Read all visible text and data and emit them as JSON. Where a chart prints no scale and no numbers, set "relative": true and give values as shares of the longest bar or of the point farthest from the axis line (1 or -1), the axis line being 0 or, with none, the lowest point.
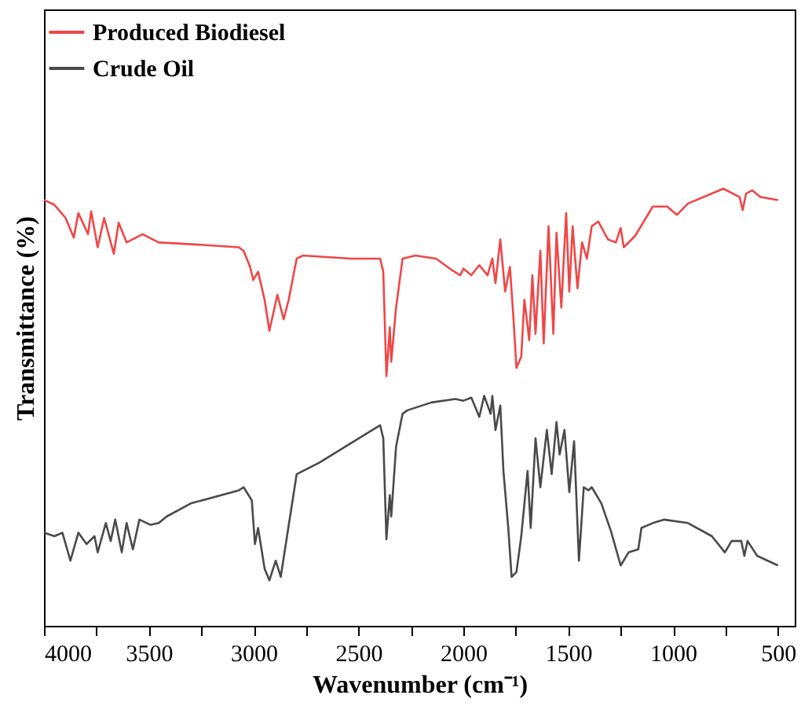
{
  "chart_data": {
    "type": "line",
    "relative": true,
    "xlabel": "Wavenumber (cm⁻¹)",
    "ylabel": "Transmittance (%)",
    "xlim": [
      4000,
      420
    ],
    "xticks": [
      4000,
      {
        "value": 3750,
        "label": null
      },
      3500,
      {
        "value": 3250,
        "label": null
      },
      3000,
      {
        "value": 2750,
        "label": null
      },
      2500,
      {
        "value": 2250,
        "label": null
      },
      2000,
      {
        "value": 1750,
        "label": null
      },
      1500,
      {
        "value": 1250,
        "label": null
      },
      1000,
      {
        "value": 750,
        "label": null
      },
      500
    ],
    "grid": false,
    "legend": "top left",
    "line_style": "solid",
    "marker": "none",
    "series": [
      {
        "name": "Produced Biodiesel",
        "color": "#f04646",
        "x": [
          4000,
          3950,
          3897,
          3858,
          3836,
          3790,
          3775,
          3744,
          3713,
          3667,
          3644,
          3606,
          3530,
          3453,
          3300,
          3071,
          3048,
          3017,
          3002,
          2979,
          2948,
          2925,
          2887,
          2857,
          2833,
          2795,
          2765,
          2535,
          2397,
          2382,
          2367,
          2351,
          2344,
          2321,
          2290,
          2229,
          2130,
          2053,
          2015,
          2000,
          1962,
          1924,
          1885,
          1862,
          1847,
          1824,
          1801,
          1778,
          1762,
          1747,
          1724,
          1709,
          1686,
          1671,
          1656,
          1633,
          1617,
          1594,
          1571,
          1556,
          1533,
          1510,
          1495,
          1479,
          1456,
          1434,
          1411,
          1388,
          1357,
          1311,
          1273,
          1250,
          1235,
          1181,
          1097,
          1028,
          982,
          929,
          760,
          683,
          668,
          652,
          622,
          584,
          500
        ],
        "values": [
          0.974,
          0.963,
          0.933,
          0.888,
          0.944,
          0.896,
          0.948,
          0.866,
          0.933,
          0.851,
          0.922,
          0.877,
          0.896,
          0.877,
          0.873,
          0.866,
          0.858,
          0.821,
          0.791,
          0.81,
          0.746,
          0.675,
          0.757,
          0.701,
          0.746,
          0.84,
          0.847,
          0.84,
          0.84,
          0.81,
          0.571,
          0.683,
          0.604,
          0.728,
          0.84,
          0.847,
          0.84,
          0.813,
          0.802,
          0.817,
          0.802,
          0.825,
          0.802,
          0.84,
          0.784,
          0.884,
          0.765,
          0.821,
          0.709,
          0.59,
          0.616,
          0.746,
          0.653,
          0.802,
          0.668,
          0.858,
          0.646,
          0.914,
          0.668,
          0.899,
          0.728,
          0.944,
          0.765,
          0.914,
          0.772,
          0.877,
          0.84,
          0.914,
          0.925,
          0.884,
          0.877,
          0.91,
          0.866,
          0.892,
          0.959,
          0.959,
          0.94,
          0.966,
          1.0,
          0.981,
          0.951,
          0.989,
          0.996,
          0.981,
          0.974
        ]
      },
      {
        "name": "Crude Oil",
        "color": "#4a4a4a",
        "x": [
          4000,
          3950,
          3912,
          3874,
          3836,
          3797,
          3759,
          3744,
          3705,
          3682,
          3660,
          3629,
          3606,
          3576,
          3545,
          3492,
          3453,
          3415,
          3300,
          3071,
          3048,
          3009,
          2994,
          2979,
          2948,
          2925,
          2895,
          2871,
          2841,
          2795,
          2688,
          2397,
          2382,
          2367,
          2351,
          2344,
          2321,
          2290,
          2267,
          2152,
          2038,
          2000,
          1962,
          1924,
          1901,
          1870,
          1862,
          1847,
          1824,
          1809,
          1786,
          1770,
          1747,
          1724,
          1694,
          1679,
          1656,
          1633,
          1602,
          1579,
          1556,
          1541,
          1518,
          1495,
          1472,
          1449,
          1426,
          1403,
          1388,
          1342,
          1296,
          1250,
          1212,
          1166,
          1151,
          1097,
          1044,
          929,
          815,
          753,
          721,
          675,
          660,
          645,
          599,
          500
        ],
        "values": [
          0.213,
          0.205,
          0.213,
          0.149,
          0.213,
          0.187,
          0.205,
          0.168,
          0.235,
          0.194,
          0.243,
          0.168,
          0.235,
          0.175,
          0.243,
          0.231,
          0.235,
          0.25,
          0.28,
          0.31,
          0.317,
          0.287,
          0.187,
          0.224,
          0.131,
          0.104,
          0.149,
          0.112,
          0.205,
          0.347,
          0.373,
          0.459,
          0.429,
          0.198,
          0.299,
          0.25,
          0.41,
          0.485,
          0.493,
          0.511,
          0.519,
          0.515,
          0.522,
          0.478,
          0.526,
          0.485,
          0.526,
          0.448,
          0.504,
          0.354,
          0.224,
          0.112,
          0.123,
          0.205,
          0.354,
          0.224,
          0.429,
          0.317,
          0.448,
          0.347,
          0.466,
          0.392,
          0.448,
          0.306,
          0.422,
          0.149,
          0.317,
          0.31,
          0.317,
          0.28,
          0.216,
          0.138,
          0.168,
          0.175,
          0.224,
          0.235,
          0.243,
          0.235,
          0.205,
          0.168,
          0.194,
          0.194,
          0.16,
          0.194,
          0.16,
          0.138
        ]
      }
    ]
  }
}
